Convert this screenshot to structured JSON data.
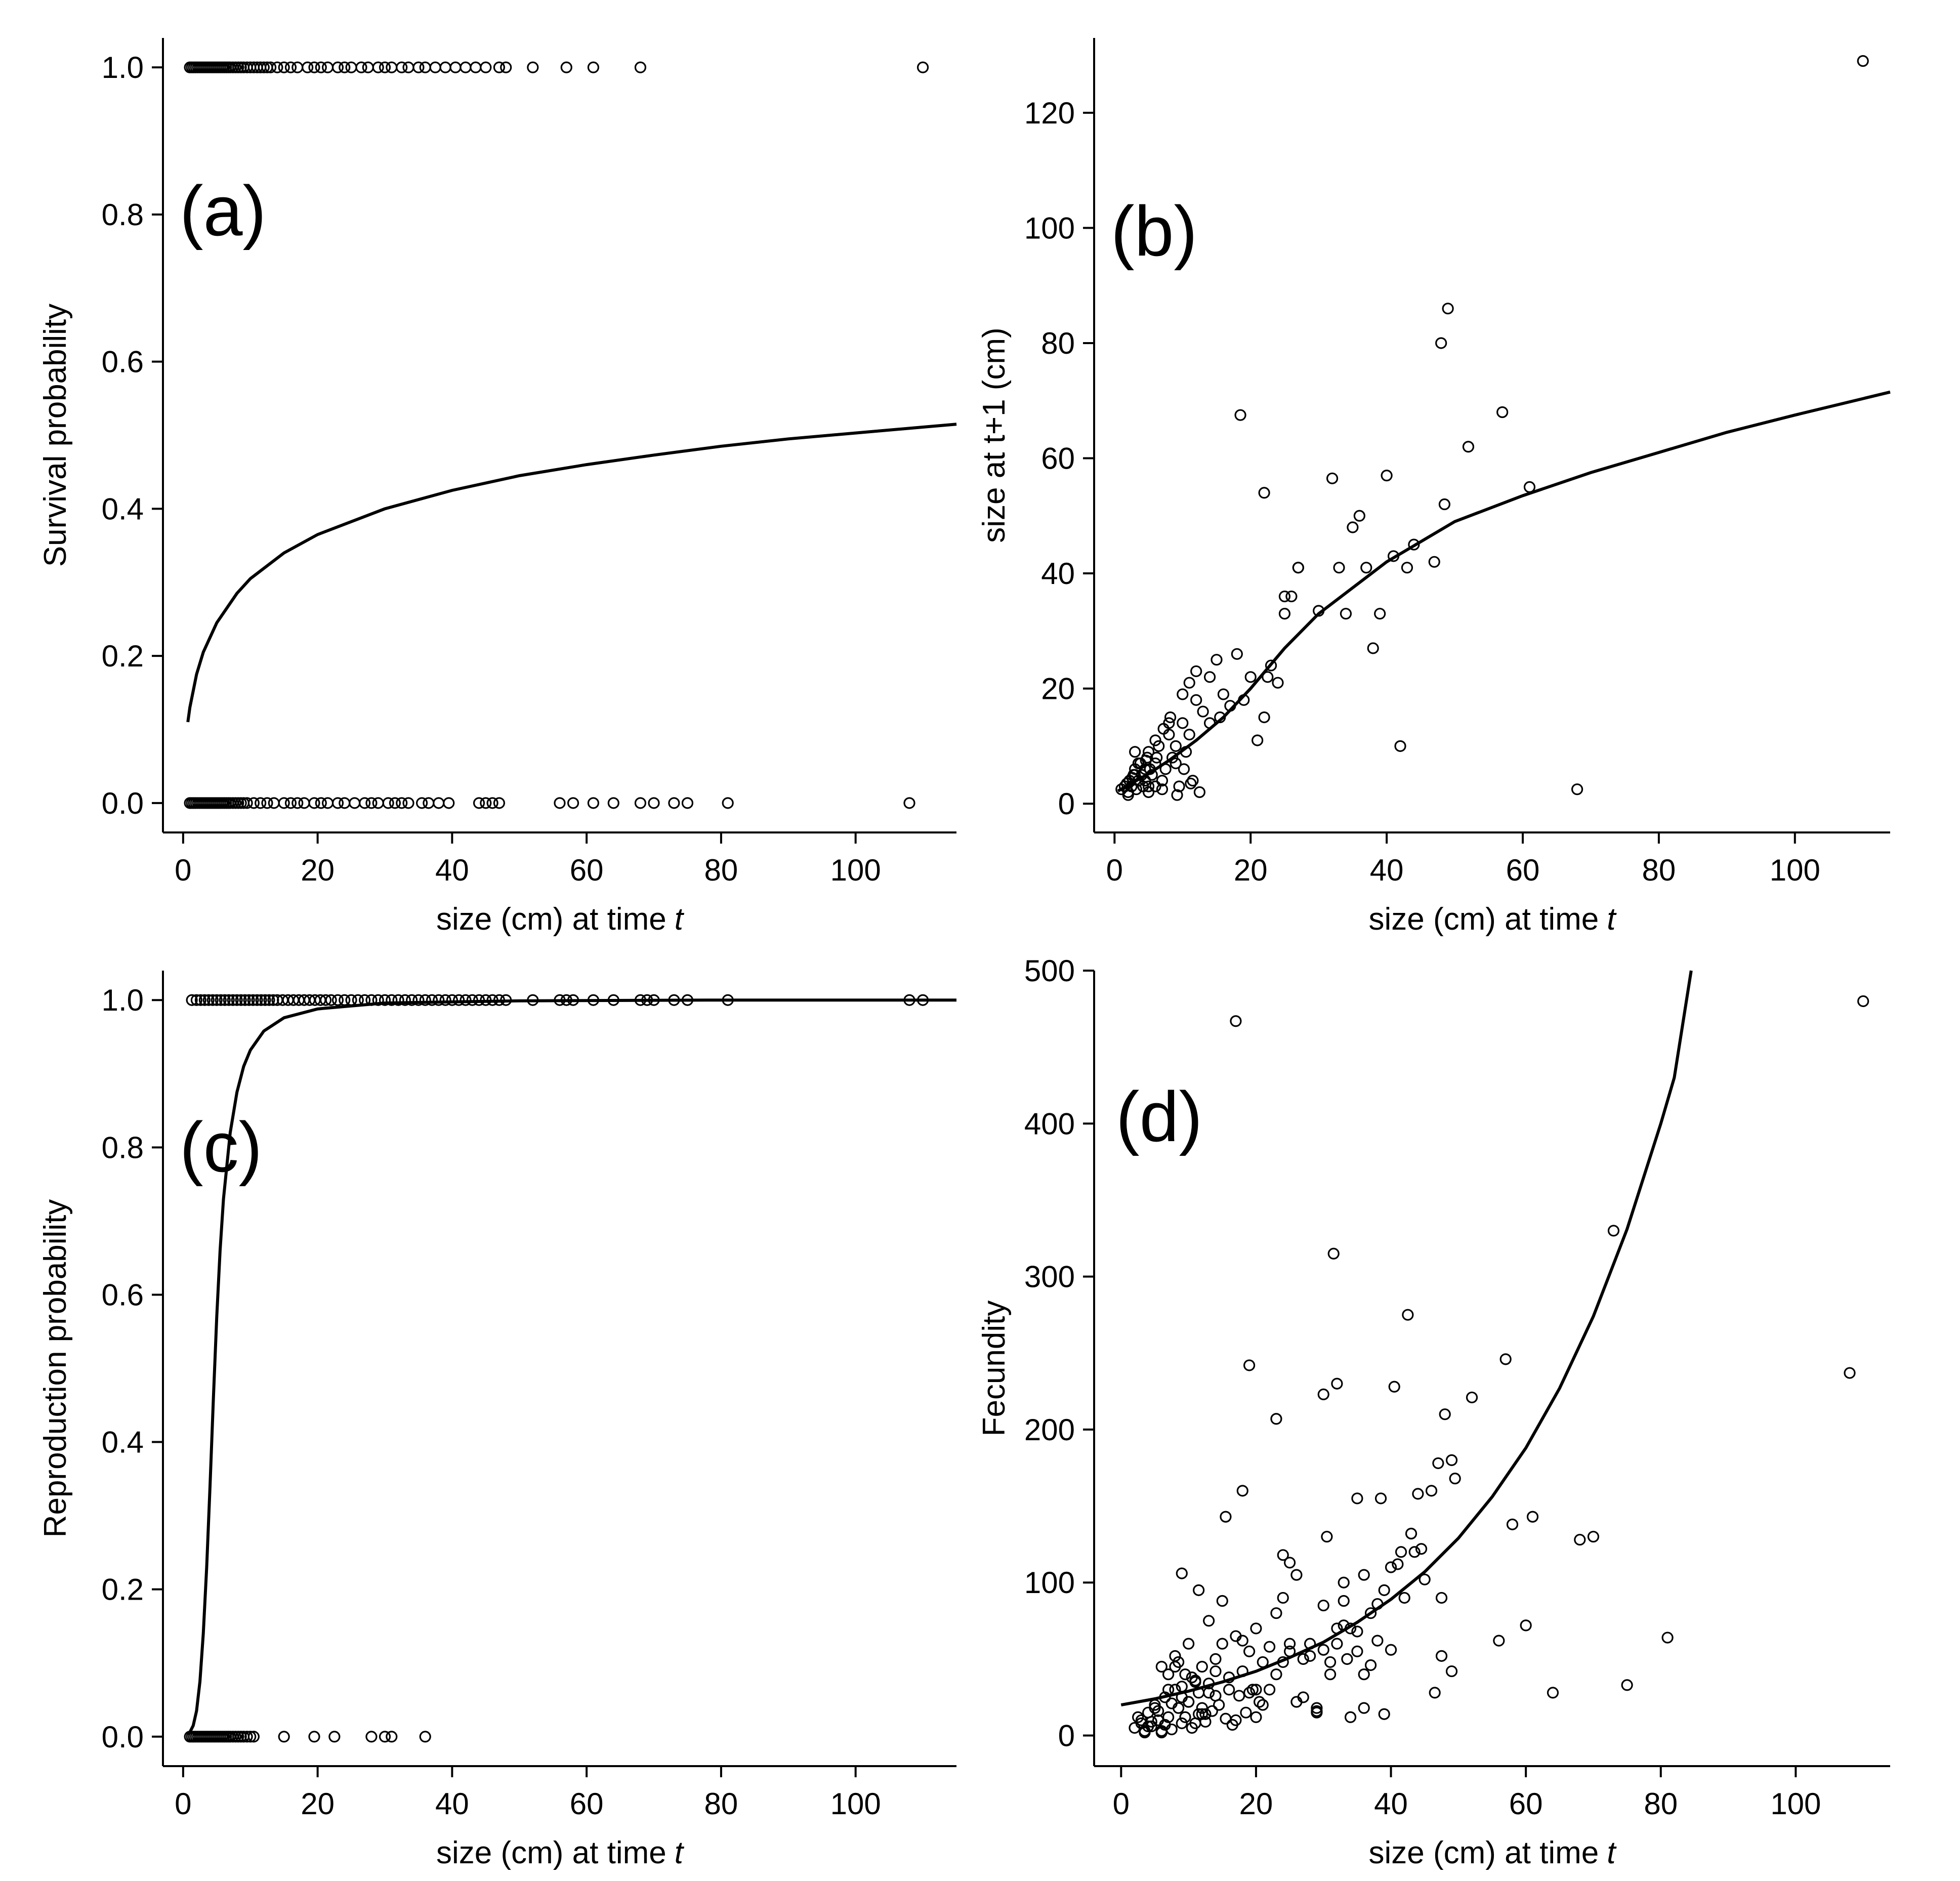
{
  "chart_data": [
    {
      "id": "a",
      "type": "scatter",
      "panel_label": "(a)",
      "xlabel": "size (cm) at time",
      "xlabel_italic": "t",
      "ylabel": "Survival probability",
      "xlim": [
        -3,
        115
      ],
      "ylim": [
        -0.04,
        1.04
      ],
      "xticks": [
        0,
        20,
        40,
        60,
        80,
        100
      ],
      "yticks": [
        0.0,
        0.2,
        0.4,
        0.6,
        0.8,
        1.0
      ],
      "ytick_labels": [
        "0.0",
        "0.2",
        "0.4",
        "0.6",
        "0.8",
        "1.0"
      ],
      "grid": false,
      "points": {
        "y_one_x": [
          1,
          1.3,
          1.6,
          1.9,
          2.2,
          2.5,
          2.8,
          3.1,
          3.4,
          3.7,
          4,
          4.3,
          4.6,
          4.9,
          5.2,
          5.5,
          5.8,
          6.1,
          6.4,
          6.7,
          7,
          7.4,
          7.8,
          8.2,
          8.6,
          9,
          9.5,
          10,
          10.5,
          11,
          11.5,
          12,
          12.5,
          13,
          14,
          15,
          16,
          17,
          18.5,
          19.5,
          20.5,
          21.5,
          23,
          24,
          25,
          26.5,
          27.5,
          29,
          30,
          31,
          32.5,
          33.5,
          35,
          36,
          37.5,
          39,
          40.5,
          42,
          43.5,
          45,
          47,
          48,
          52,
          57,
          61,
          68,
          110
        ],
        "y_zero_x": [
          1,
          1.3,
          1.6,
          1.9,
          2.2,
          2.5,
          2.8,
          3.1,
          3.4,
          3.7,
          4,
          4.3,
          4.6,
          4.9,
          5.2,
          5.5,
          5.8,
          6.1,
          6.4,
          6.7,
          7,
          7.4,
          7.8,
          8.2,
          8.6,
          9,
          9.5,
          10.5,
          11.5,
          12.5,
          13.5,
          15,
          16,
          17,
          18,
          19.5,
          20.5,
          21.5,
          23,
          24,
          25.5,
          27,
          28,
          29,
          30.5,
          31.5,
          32.5,
          33.5,
          35.5,
          36.5,
          38,
          39.5,
          44,
          45,
          46,
          47,
          56,
          58,
          61,
          64,
          68,
          70,
          73,
          75,
          81,
          108
        ]
      },
      "fit_curve": {
        "x": [
          0.7,
          1,
          2,
          3,
          5,
          8,
          10,
          15,
          20,
          30,
          40,
          50,
          60,
          70,
          80,
          90,
          100,
          110,
          115
        ],
        "y": [
          0.11,
          0.13,
          0.175,
          0.205,
          0.245,
          0.285,
          0.305,
          0.34,
          0.365,
          0.4,
          0.425,
          0.445,
          0.46,
          0.473,
          0.485,
          0.495,
          0.503,
          0.511,
          0.515
        ]
      }
    },
    {
      "id": "b",
      "type": "scatter",
      "panel_label": "(b)",
      "xlabel": "size (cm) at time",
      "xlabel_italic": "t",
      "ylabel": "size at t+1 (cm)",
      "xlim": [
        -3,
        114
      ],
      "ylim": [
        -5,
        133
      ],
      "xticks": [
        0,
        20,
        40,
        60,
        80,
        100
      ],
      "yticks": [
        0,
        20,
        40,
        60,
        80,
        100,
        120
      ],
      "ytick_labels": [
        "0",
        "20",
        "40",
        "60",
        "80",
        "100",
        "120"
      ],
      "grid": false,
      "points": {
        "x": [
          1,
          1.5,
          2,
          2.2,
          2.5,
          2.8,
          3,
          3.2,
          3.5,
          3.8,
          4,
          4.2,
          4.5,
          4.8,
          5,
          5.5,
          6,
          6.5,
          7,
          7.5,
          8,
          8.5,
          9,
          9.5,
          10,
          10.5,
          11,
          11.5,
          12,
          12.5,
          3,
          4,
          5,
          6,
          7,
          8,
          9,
          10,
          11,
          12,
          13,
          14,
          15,
          15.5,
          16,
          17,
          18,
          19,
          20,
          21,
          22,
          22.5,
          23,
          24,
          25,
          26,
          27,
          3.5,
          4.5,
          5.2,
          6.2,
          7.2,
          8.2,
          9.2,
          10.2,
          11.2,
          5,
          6,
          2,
          3,
          1.8,
          2.6,
          4.6,
          14,
          18.5,
          22,
          25,
          27,
          30,
          32,
          33,
          34,
          35,
          36,
          37,
          38,
          39,
          40,
          41,
          42,
          43,
          44,
          47,
          48,
          48.5,
          49,
          52,
          57,
          61,
          68,
          110
        ],
        "y": [
          2.5,
          3,
          2,
          4,
          3,
          5,
          6,
          2.5,
          4,
          7,
          5,
          3,
          6,
          8,
          9,
          5,
          7,
          10,
          4,
          6,
          12,
          8,
          10,
          3,
          14,
          9,
          12,
          4,
          18,
          2,
          9,
          5,
          3,
          11,
          2.5,
          14,
          7,
          19,
          21,
          23,
          16,
          22,
          25,
          15,
          19,
          17,
          26,
          18,
          22,
          11,
          15,
          22,
          24,
          21,
          36,
          36,
          41,
          7,
          4,
          6,
          8,
          13,
          15,
          1.5,
          6,
          3.5,
          2,
          3,
          1.5,
          5,
          3.5,
          4.5,
          7.5,
          14,
          67.5,
          54,
          33,
          41,
          33.5,
          56.5,
          41,
          33,
          48,
          50,
          41,
          27,
          33,
          57,
          43,
          10,
          41,
          45,
          42,
          80,
          52,
          86,
          62,
          68,
          55,
          2.5,
          129
        ]
      },
      "fit_curve": {
        "x": [
          0.5,
          2,
          5,
          8,
          12,
          16,
          20,
          25,
          30,
          40,
          50,
          60,
          70,
          80,
          90,
          100,
          114
        ],
        "y": [
          2.2,
          3.2,
          5.2,
          7.5,
          11,
          15,
          20,
          27,
          33,
          42,
          49,
          53.5,
          57.5,
          61,
          64.5,
          67.5,
          71.5
        ]
      }
    },
    {
      "id": "c",
      "type": "scatter",
      "panel_label": "(c)",
      "xlabel": "size (cm) at time",
      "xlabel_italic": "t",
      "ylabel": "Reproduction probability",
      "xlim": [
        -3,
        115
      ],
      "ylim": [
        -0.04,
        1.04
      ],
      "xticks": [
        0,
        20,
        40,
        60,
        80,
        100
      ],
      "yticks": [
        0.0,
        0.2,
        0.4,
        0.6,
        0.8,
        1.0
      ],
      "ytick_labels": [
        "0.0",
        "0.2",
        "0.4",
        "0.6",
        "0.8",
        "1.0"
      ],
      "grid": false,
      "points": {
        "y_one_x": [
          1.3,
          2,
          2.6,
          3.2,
          3.8,
          4.4,
          5,
          5.6,
          6.2,
          6.8,
          7.4,
          8,
          8.6,
          9.2,
          9.8,
          10.4,
          11,
          11.6,
          12.2,
          12.8,
          13.4,
          14,
          14.8,
          15.6,
          16.4,
          17.2,
          18,
          18.8,
          19.6,
          20.4,
          21.2,
          22,
          23,
          24,
          25,
          26,
          27,
          28,
          29,
          30,
          31,
          32,
          33,
          34,
          35,
          36,
          37,
          38,
          39,
          40,
          41,
          42,
          43,
          44,
          45,
          46,
          47,
          48,
          52,
          56,
          57,
          58,
          61,
          64,
          68,
          69,
          70,
          73,
          75,
          81,
          108,
          110
        ],
        "y_zero_x": [
          1,
          1.3,
          1.6,
          1.9,
          2.2,
          2.5,
          2.8,
          3.1,
          3.4,
          3.7,
          4,
          4.3,
          4.6,
          4.9,
          5.2,
          5.5,
          5.8,
          6.1,
          6.4,
          6.7,
          7,
          7.4,
          7.8,
          8.2,
          8.6,
          9,
          9.5,
          10,
          10.5,
          15,
          19.5,
          22.5,
          28,
          30,
          31,
          36
        ]
      },
      "fit_curve": {
        "x": [
          0.7,
          1,
          1.5,
          2,
          2.5,
          3,
          3.5,
          4,
          4.5,
          5,
          5.5,
          6,
          7,
          8,
          9,
          10,
          12,
          15,
          20,
          30,
          50,
          80,
          115
        ],
        "y": [
          0.003,
          0.006,
          0.015,
          0.035,
          0.075,
          0.14,
          0.23,
          0.34,
          0.46,
          0.57,
          0.66,
          0.73,
          0.82,
          0.875,
          0.91,
          0.932,
          0.958,
          0.976,
          0.988,
          0.996,
          0.999,
          1.0,
          1.0
        ]
      }
    },
    {
      "id": "d",
      "type": "scatter",
      "panel_label": "(d)",
      "xlabel": "size (cm) at time",
      "xlabel_italic": "t",
      "ylabel": "Fecundity",
      "xlim": [
        -4,
        114
      ],
      "ylim": [
        -20,
        500
      ],
      "xticks": [
        0,
        20,
        40,
        60,
        80,
        100
      ],
      "yticks": [
        0,
        100,
        200,
        300,
        400,
        500
      ],
      "ytick_labels": [
        "0",
        "100",
        "200",
        "300",
        "400",
        "500"
      ],
      "grid": false,
      "points": {
        "x": [
          2,
          2.5,
          3,
          3.5,
          4,
          4.5,
          5,
          5.5,
          6,
          6.5,
          7,
          7.5,
          8,
          8.5,
          9,
          9.5,
          10,
          10.5,
          11,
          11.5,
          12,
          12.5,
          13,
          13.5,
          14,
          14.5,
          15,
          15.5,
          16,
          16.5,
          17,
          17.5,
          18,
          18.5,
          19,
          19.5,
          20,
          20.5,
          21,
          22,
          23,
          24,
          25,
          26,
          27,
          28,
          29,
          30,
          31,
          32,
          33,
          34,
          35,
          36,
          37,
          38,
          39,
          40,
          3,
          4,
          5,
          6,
          7,
          8,
          9,
          10,
          11,
          12,
          13,
          14,
          3.5,
          4.5,
          5.5,
          6.5,
          7.5,
          8.5,
          9.5,
          10.5,
          11.5,
          12.5,
          6,
          7,
          8,
          9,
          10,
          11,
          12,
          13,
          14,
          15,
          16,
          17,
          18,
          19,
          20,
          21,
          22,
          23,
          24,
          25,
          26,
          27,
          28,
          29,
          30,
          31,
          32,
          33,
          34,
          35,
          36,
          37,
          38,
          39,
          40,
          41,
          42,
          43,
          44,
          45,
          46,
          47,
          48,
          49,
          52,
          56,
          57,
          58,
          60,
          61,
          64,
          68,
          70,
          73,
          75,
          81,
          108,
          110,
          17,
          19,
          23,
          24,
          31.5,
          30,
          32,
          35,
          38.5,
          40.5,
          42.5,
          43.5,
          47.5,
          49,
          49.5,
          29,
          33,
          11.5,
          9,
          15.5,
          18,
          20,
          25,
          30.5,
          33.5,
          36,
          41.5,
          44.5,
          46.5,
          47.5
        ],
        "y": [
          5,
          12,
          8,
          2,
          15,
          6,
          20,
          10,
          3,
          25,
          12,
          4,
          30,
          18,
          8,
          40,
          22,
          5,
          35,
          14,
          45,
          9,
          28,
          16,
          50,
          20,
          60,
          11,
          38,
          7,
          65,
          26,
          42,
          15,
          55,
          30,
          70,
          22,
          48,
          58,
          80,
          90,
          60,
          105,
          25,
          52,
          15,
          85,
          48,
          60,
          72,
          12,
          55,
          40,
          80,
          62,
          95,
          110,
          10,
          6,
          18,
          2,
          40,
          45,
          32,
          22,
          8,
          14,
          34,
          26,
          3,
          9,
          16,
          7,
          21,
          48,
          12,
          38,
          28,
          14,
          45,
          30,
          52,
          25,
          60,
          36,
          18,
          75,
          42,
          88,
          30,
          10,
          62,
          28,
          12,
          20,
          30,
          40,
          48,
          55,
          22,
          50,
          60,
          18,
          56,
          40,
          70,
          88,
          70,
          68,
          18,
          46,
          86,
          14,
          56,
          112,
          90,
          132,
          158,
          102,
          160,
          178,
          210,
          180,
          221,
          62,
          246,
          138,
          72,
          143,
          28,
          128,
          130,
          330,
          33,
          64,
          237,
          480,
          467,
          242,
          207,
          118,
          315,
          223,
          230,
          155,
          155,
          228,
          275,
          120,
          52,
          42,
          168,
          16,
          100,
          95,
          106,
          143,
          160,
          30,
          113,
          130,
          50,
          105,
          120,
          122,
          28,
          90
        ]
      },
      "fit_curve": {
        "x": [
          0,
          5,
          10,
          15,
          20,
          25,
          30,
          35,
          40,
          45,
          50,
          55,
          60,
          65,
          70,
          75,
          80,
          82,
          84.5
        ],
        "y": [
          20,
          24,
          29,
          35,
          42,
          51,
          61,
          74,
          89,
          107,
          129,
          156,
          188,
          227,
          274,
          331,
          400,
          430,
          500
        ]
      }
    }
  ]
}
